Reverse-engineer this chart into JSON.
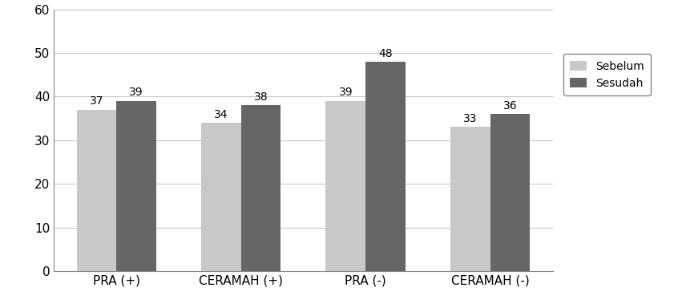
{
  "categories": [
    "PRA (+)",
    "CERAMAH (+)",
    "PRA (-)",
    "CERAMAH (-)"
  ],
  "sebelum_values": [
    37,
    34,
    39,
    33
  ],
  "sesudah_values": [
    39,
    38,
    48,
    36
  ],
  "sebelum_color": "#c8c8c8",
  "sesudah_color": "#666666",
  "legend_labels": [
    "Sebelum",
    "Sesudah"
  ],
  "ylim": [
    0,
    60
  ],
  "yticks": [
    0,
    10,
    20,
    30,
    40,
    50,
    60
  ],
  "bar_width": 0.32,
  "tick_fontsize": 11,
  "value_fontsize": 10,
  "legend_fontsize": 10,
  "background_color": "#ffffff",
  "plot_bg_color": "#ffffff",
  "grid_color": "#c8c8c8",
  "spine_color": "#888888"
}
